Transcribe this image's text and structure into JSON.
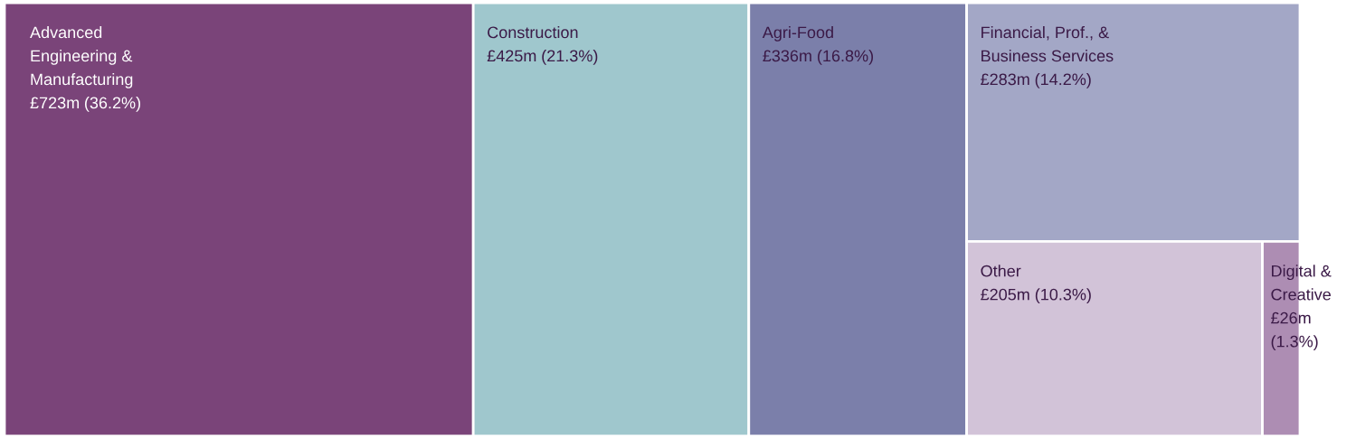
{
  "chart_data": {
    "type": "other",
    "categories": [
      "Advanced Engineering & Manufacturing",
      "Construction",
      "Agri-Food",
      "Financial, Prof., & Business Services",
      "Other",
      "Digital & Creative"
    ],
    "values": [
      723,
      425,
      336,
      283,
      205,
      26
    ],
    "value_labels": [
      "£723m",
      "£425m",
      "£336m",
      "£283m",
      "£205m",
      "£26m"
    ],
    "annotations": [
      "(36.2%)",
      "(21.3%)",
      "(16.8%)",
      "(14.2%)",
      "(10.3%)",
      "(1.3%)"
    ],
    "colors": [
      "#7a4479",
      "#9fc7cd",
      "#7b7faa",
      "#a3a7c6",
      "#d2c3d8",
      "#ad8db3"
    ]
  }
}
